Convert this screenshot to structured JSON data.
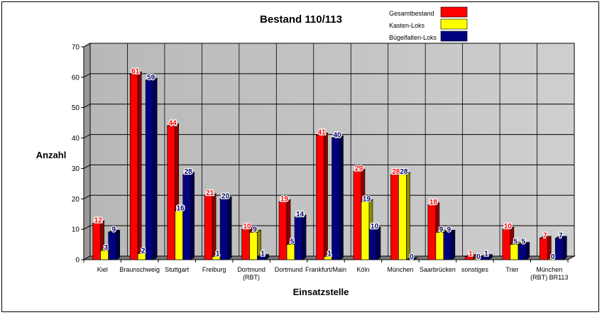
{
  "chart_data": {
    "type": "bar",
    "title": "Bestand 110/113",
    "xlabel": "Einsatzstelle",
    "ylabel": "Anzahl",
    "ylim": [
      0,
      70
    ],
    "yticks": [
      "0",
      "10",
      "20",
      "30",
      "40",
      "50",
      "60",
      "70"
    ],
    "grid": true,
    "three_d": true,
    "legend_position": "top-right",
    "categories": [
      [
        "Kiel"
      ],
      [
        "Braunschweig"
      ],
      [
        "Stuttgart"
      ],
      [
        "Freiburg"
      ],
      [
        "Dortmund",
        "(RBT)"
      ],
      [
        "Dortmund"
      ],
      [
        "Frankfurt/Main"
      ],
      [
        "Köln"
      ],
      [
        "München"
      ],
      [
        "Saarbrücken"
      ],
      [
        "sonstiges"
      ],
      [
        "Trier"
      ],
      [
        "München",
        "(RBT) BR113"
      ]
    ],
    "series": [
      {
        "name": "Gesamtbestand",
        "color": "#ff0000",
        "label_color": "#ff0000",
        "values": [
          12,
          61,
          44,
          21,
          10,
          19,
          41,
          29,
          28,
          18,
          1,
          10,
          7
        ]
      },
      {
        "name": "Kasten-Loks",
        "color": "#ffff00",
        "label_color": "#000066",
        "values": [
          3,
          2,
          16,
          1,
          9,
          5,
          1,
          19,
          28,
          9,
          0,
          5,
          0
        ]
      },
      {
        "name": "Bügelfalten-Loks",
        "color": "#000080",
        "label_color": "#000066",
        "values": [
          9,
          59,
          28,
          20,
          1,
          14,
          40,
          10,
          0,
          9,
          1,
          5,
          7
        ]
      }
    ]
  }
}
